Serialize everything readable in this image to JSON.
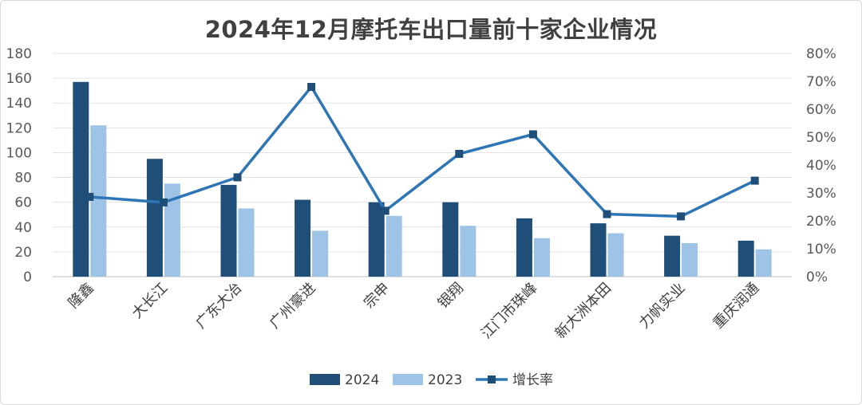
{
  "chart_data": {
    "type": "bar",
    "title": "2024年12月摩托车出口量前十家企业情况",
    "categories": [
      "隆鑫",
      "大长江",
      "广东大冶",
      "广州豪进",
      "宗申",
      "银翔",
      "江门市珠峰",
      "新大洲本田",
      "力帆实业",
      "重庆润通"
    ],
    "series": [
      {
        "name": "2024",
        "type": "bar",
        "axis": "left",
        "color": "#1f4e79",
        "values": [
          157,
          95,
          74,
          62,
          60,
          60,
          47,
          43,
          33,
          29
        ]
      },
      {
        "name": "2023",
        "type": "bar",
        "axis": "left",
        "color": "#9dc3e6",
        "values": [
          122,
          75,
          55,
          37,
          49,
          41,
          31,
          35,
          27,
          22
        ]
      },
      {
        "name": "增长率",
        "type": "line",
        "axis": "right",
        "color": "#2e75b6",
        "values": [
          0.286,
          0.266,
          0.356,
          0.68,
          0.236,
          0.44,
          0.51,
          0.224,
          0.216,
          0.344
        ]
      }
    ],
    "y_left": {
      "min": 0,
      "max": 180,
      "ticks": [
        0,
        20,
        40,
        60,
        80,
        100,
        120,
        140,
        160,
        180
      ]
    },
    "y_right": {
      "min": 0,
      "max": 0.8,
      "ticks": [
        "0%",
        "10%",
        "20%",
        "30%",
        "40%",
        "50%",
        "60%",
        "70%",
        "80%"
      ]
    },
    "grid": true,
    "legend": "bottom"
  }
}
